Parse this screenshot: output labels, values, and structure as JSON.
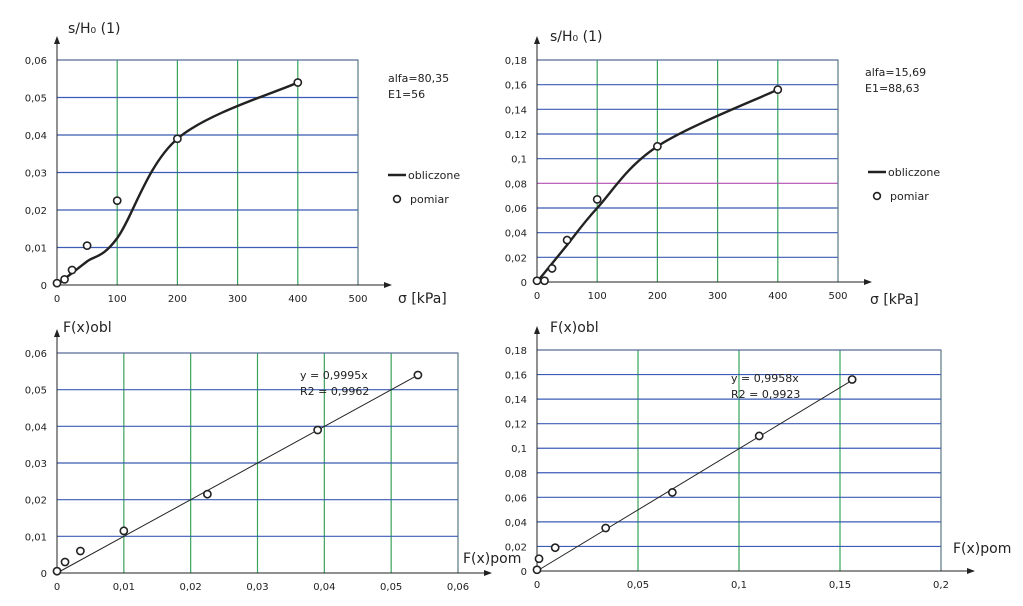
{
  "chart_data": [
    {
      "type": "line",
      "ylabel": "s/H₀ (1)",
      "xlabel": "σ [kPa]",
      "xlim": [
        0,
        500
      ],
      "ylim": [
        0,
        0.06
      ],
      "xticks": [
        "0",
        "100",
        "200",
        "300",
        "400",
        "500"
      ],
      "yticks": [
        "0",
        "0,01",
        "0,02",
        "0,03",
        "0,04",
        "0,05",
        "0,06"
      ],
      "grid": true,
      "annotations": [
        "alfa=80,35",
        "E1=56"
      ],
      "legend": {
        "position": "right",
        "entries": [
          "obliczone",
          "pomiar"
        ]
      },
      "series": [
        {
          "name": "obliczone",
          "style": "line",
          "x": [
            0,
            12.5,
            25,
            50,
            100,
            200,
            400
          ],
          "y": [
            0,
            0.0016,
            0.0032,
            0.0063,
            0.0125,
            0.039,
            0.054
          ]
        },
        {
          "name": "pomiar",
          "style": "marker",
          "x": [
            0,
            12.5,
            25,
            50,
            100,
            200,
            400
          ],
          "y": [
            0.0005,
            0.0015,
            0.004,
            0.0105,
            0.0225,
            0.039,
            0.054
          ]
        }
      ]
    },
    {
      "type": "line",
      "ylabel": "s/H₀ (1)",
      "xlabel": "σ [kPa]",
      "xlim": [
        0,
        500
      ],
      "ylim": [
        0,
        0.18
      ],
      "xticks": [
        "0",
        "100",
        "200",
        "300",
        "400",
        "500"
      ],
      "yticks": [
        "0",
        "0,02",
        "0,04",
        "0,06",
        "0,08",
        "0,1",
        "0,12",
        "0,14",
        "0,16",
        "0,18"
      ],
      "grid": true,
      "annotations": [
        "alfa=15,69",
        "E1=88,63"
      ],
      "legend": {
        "position": "right",
        "entries": [
          "obliczone",
          "pomiar"
        ]
      },
      "series": [
        {
          "name": "obliczone",
          "style": "line",
          "x": [
            0,
            12.5,
            25,
            50,
            100,
            200,
            400
          ],
          "y": [
            0,
            0.0075,
            0.015,
            0.03,
            0.06,
            0.11,
            0.156
          ]
        },
        {
          "name": "pomiar",
          "style": "marker",
          "x": [
            0,
            12.5,
            25,
            50,
            100,
            200,
            400
          ],
          "y": [
            0.001,
            0.001,
            0.011,
            0.034,
            0.067,
            0.11,
            0.156
          ]
        }
      ]
    },
    {
      "type": "scatter",
      "ylabel": "F(x)obl",
      "xlabel": "F(x)pom",
      "xlim": [
        0,
        0.06
      ],
      "ylim": [
        0,
        0.06
      ],
      "xticks": [
        "0",
        "0,01",
        "0,02",
        "0,03",
        "0,04",
        "0,05",
        "0,06"
      ],
      "yticks": [
        "0",
        "0,01",
        "0,02",
        "0,03",
        "0,04",
        "0,05",
        "0,06"
      ],
      "grid": true,
      "annotations": [
        "y = 0,9995x",
        "R2 = 0,9962"
      ],
      "trendline": {
        "slope": 0.9995,
        "x_range": [
          0,
          0.054
        ]
      },
      "series": [
        {
          "style": "marker",
          "x": [
            0,
            0.0012,
            0.0035,
            0.01,
            0.0225,
            0.039,
            0.054
          ],
          "y": [
            0.0005,
            0.003,
            0.006,
            0.0115,
            0.0215,
            0.039,
            0.054
          ]
        }
      ]
    },
    {
      "type": "scatter",
      "ylabel": "F(x)obl",
      "xlabel": "F(x)pom",
      "xlim": [
        0,
        0.2
      ],
      "ylim": [
        0,
        0.18
      ],
      "xticks": [
        "0",
        "0,05",
        "0,1",
        "0,15",
        "0,2"
      ],
      "yticks": [
        "0",
        "0,02",
        "0,04",
        "0,06",
        "0,08",
        "0,1",
        "0,12",
        "0,14",
        "0,16",
        "0,18"
      ],
      "grid": true,
      "annotations": [
        "y = 0,9958x",
        "R2 = 0,9923"
      ],
      "trendline": {
        "slope": 0.9958,
        "x_range": [
          0,
          0.156
        ]
      },
      "series": [
        {
          "style": "marker",
          "x": [
            0,
            0.001,
            0.009,
            0.034,
            0.067,
            0.11,
            0.156
          ],
          "y": [
            0.001,
            0.01,
            0.019,
            0.035,
            0.064,
            0.11,
            0.156
          ]
        }
      ]
    }
  ],
  "colors": {
    "grid_v": "#3aa35c",
    "grid_h": "#3b5bb5",
    "grid_h_mid": "#b04fb0",
    "frame": "#5f6f8f",
    "series": "#222222"
  }
}
